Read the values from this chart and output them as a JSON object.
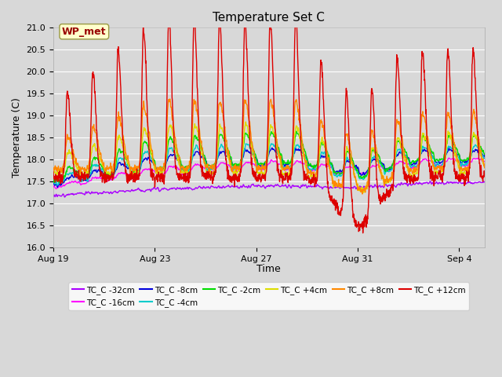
{
  "title": "Temperature Set C",
  "xlabel": "Time",
  "ylabel": "Temperature (C)",
  "ylim": [
    16.0,
    21.0
  ],
  "yticks": [
    16.0,
    16.5,
    17.0,
    17.5,
    18.0,
    18.5,
    19.0,
    19.5,
    20.0,
    20.5,
    21.0
  ],
  "xtick_labels": [
    "Aug 19",
    "Aug 23",
    "Aug 27",
    "Aug 31",
    "Sep 4"
  ],
  "wp_met_label": "WP_met",
  "series": [
    {
      "label": "TC_C -32cm",
      "color": "#aa00ff"
    },
    {
      "label": "TC_C -16cm",
      "color": "#ff00ff"
    },
    {
      "label": "TC_C -8cm",
      "color": "#0000dd"
    },
    {
      "label": "TC_C -4cm",
      "color": "#00cccc"
    },
    {
      "label": "TC_C -2cm",
      "color": "#00dd00"
    },
    {
      "label": "TC_C +4cm",
      "color": "#dddd00"
    },
    {
      "label": "TC_C +8cm",
      "color": "#ff8800"
    },
    {
      "label": "TC_C +12cm",
      "color": "#dd0000"
    }
  ],
  "background_color": "#d8d8d8",
  "plot_bg_color": "#d8d8d8",
  "grid_color": "#ffffff",
  "linewidth": 1.0,
  "figsize": [
    6.4,
    4.8
  ],
  "dpi": 100
}
